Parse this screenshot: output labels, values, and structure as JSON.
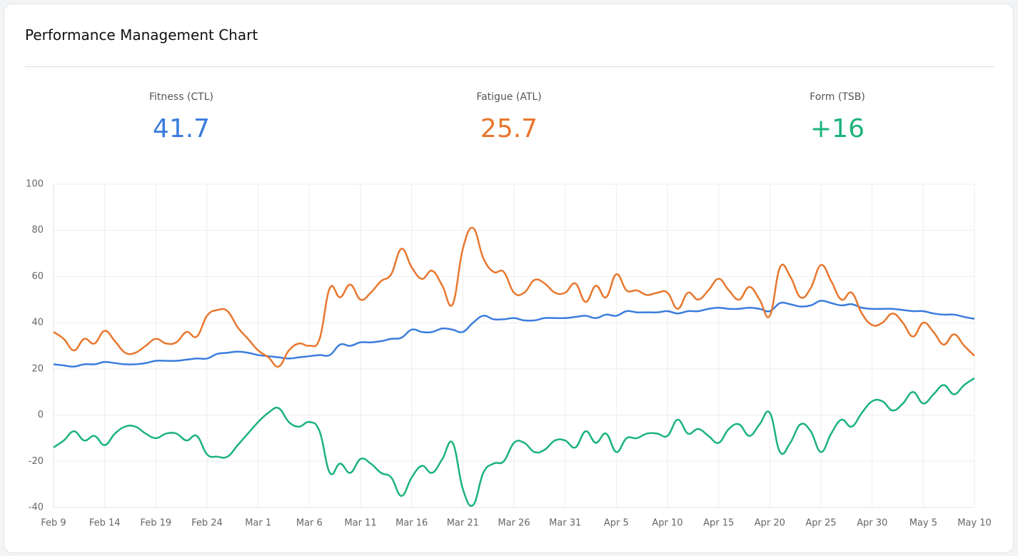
{
  "header": {
    "title": "Performance Management Chart"
  },
  "stats": [
    {
      "label": "Fitness (CTL)",
      "value": "41.7",
      "color": "#3b7ddd"
    },
    {
      "label": "Fatigue (ATL)",
      "value": "25.7",
      "color": "#e8772e"
    },
    {
      "label": "Form (TSB)",
      "value": "+16",
      "color": "#1bb37a"
    }
  ],
  "chart_data": {
    "type": "line",
    "categories": [
      "Feb 9",
      null,
      null,
      null,
      null,
      "Feb 14",
      null,
      null,
      null,
      null,
      "Feb 19",
      null,
      null,
      null,
      null,
      "Feb 24",
      null,
      null,
      null,
      null,
      "Mar 1",
      null,
      null,
      null,
      null,
      "Mar 6",
      null,
      null,
      null,
      null,
      "Mar 11",
      null,
      null,
      null,
      null,
      "Mar 16",
      null,
      null,
      null,
      null,
      "Mar 21",
      null,
      null,
      null,
      null,
      "Mar 26",
      null,
      null,
      null,
      null,
      "Mar 31",
      null,
      null,
      null,
      null,
      "Apr 5",
      null,
      null,
      null,
      null,
      "Apr 10",
      null,
      null,
      null,
      null,
      "Apr 15",
      null,
      null,
      null,
      null,
      "Apr 20",
      null,
      null,
      null,
      null,
      "Apr 25",
      null,
      null,
      null,
      null,
      "Apr 30",
      null,
      null,
      null,
      null,
      "May 5",
      null,
      null,
      null,
      null,
      "May 10"
    ],
    "series": [
      {
        "name": "Fitness (CTL)",
        "color": "#3b7ddd",
        "values": [
          22,
          21.5,
          21,
          22,
          22,
          23,
          22.5,
          22,
          22,
          22.5,
          23.5,
          23.5,
          23.5,
          24,
          24.5,
          24.5,
          26.5,
          27,
          27.5,
          27,
          26,
          25.5,
          25,
          24.5,
          25,
          25.5,
          26,
          26,
          30.5,
          30,
          31.5,
          31.5,
          32,
          33,
          33.5,
          37,
          36,
          36,
          37.5,
          37,
          36,
          40,
          43,
          41.5,
          41.5,
          42,
          41,
          41,
          42,
          42,
          42,
          42.5,
          43,
          42,
          43.5,
          43,
          45,
          44.5,
          44.5,
          44.5,
          45,
          44,
          45,
          45,
          46,
          46.5,
          46,
          46,
          46.5,
          46,
          45,
          48.5,
          48,
          47,
          47.5,
          49.5,
          48.5,
          47.5,
          48,
          46.5,
          46,
          46,
          46,
          45.5,
          45,
          45,
          44,
          43.5,
          43.5,
          42.5,
          41.7
        ]
      },
      {
        "name": "Fatigue (ATL)",
        "color": "#e8772e",
        "values": [
          36,
          33,
          28,
          33,
          31,
          36.5,
          32,
          27,
          27,
          30,
          33,
          31,
          31.5,
          36,
          34,
          43,
          45.5,
          45,
          38,
          33,
          28,
          25,
          21,
          28,
          31,
          30,
          33,
          55,
          51,
          56.5,
          50,
          53,
          58,
          61,
          72,
          64,
          59,
          62.5,
          56,
          48,
          72,
          81,
          68,
          62,
          62,
          53,
          53,
          58.5,
          57,
          53,
          53,
          57,
          49,
          56,
          51,
          61,
          54,
          54,
          52,
          53,
          53,
          46,
          53,
          50,
          54,
          59,
          54,
          50,
          55.5,
          50,
          43,
          64,
          60,
          51,
          55,
          65,
          58,
          50,
          53,
          44,
          39,
          40,
          44,
          40,
          34,
          40,
          36,
          30.5,
          35,
          30,
          25.7
        ]
      },
      {
        "name": "Form (TSB)",
        "color": "#1bb37a",
        "values": [
          -14,
          -11,
          -7,
          -11,
          -9,
          -13,
          -8,
          -5,
          -5,
          -8,
          -10,
          -8,
          -8,
          -11,
          -9,
          -17,
          -18,
          -18,
          -13,
          -8,
          -3,
          1,
          3,
          -3,
          -5,
          -3,
          -7,
          -25,
          -21,
          -25,
          -19,
          -21,
          -25,
          -27,
          -35,
          -27,
          -22,
          -25,
          -19,
          -12,
          -32,
          -39,
          -25,
          -21,
          -20,
          -12,
          -12,
          -16,
          -15,
          -11,
          -11,
          -14,
          -7,
          -12,
          -8,
          -16,
          -10,
          -10,
          -8,
          -8,
          -9,
          -2,
          -8,
          -6,
          -9,
          -12,
          -6,
          -4,
          -9,
          -4,
          1,
          -16,
          -12,
          -4,
          -7,
          -16,
          -8,
          -2,
          -5,
          1,
          6,
          6,
          2,
          5,
          10,
          5,
          9,
          13,
          9,
          13,
          16
        ]
      }
    ],
    "ylim": [
      -40,
      100
    ],
    "yticks": [
      -40,
      -20,
      0,
      20,
      40,
      60,
      80,
      100
    ],
    "grid": true
  }
}
